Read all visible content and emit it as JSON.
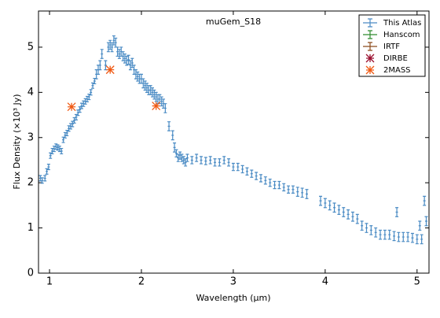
{
  "chart_data": {
    "type": "errorbar",
    "title": "muGem_S18",
    "xlabel": "Wavelength (μm)",
    "ylabel": "Flux Density (×10³ Jy)",
    "xlim": [
      0.88,
      5.13
    ],
    "ylim": [
      0,
      5.8
    ],
    "xticks": [
      1,
      2,
      3,
      4,
      5
    ],
    "yticks": [
      0,
      1,
      2,
      3,
      4,
      5
    ],
    "grid": false,
    "legend": "upper right",
    "series": [
      {
        "name": "This Atlas",
        "color": "#4a8bc4",
        "marker": "errorbar",
        "x": [
          0.9,
          0.92,
          0.95,
          0.97,
          0.99,
          1.01,
          1.03,
          1.05,
          1.07,
          1.09,
          1.11,
          1.13,
          1.15,
          1.17,
          1.19,
          1.21,
          1.23,
          1.25,
          1.27,
          1.29,
          1.31,
          1.33,
          1.35,
          1.37,
          1.39,
          1.41,
          1.43,
          1.45,
          1.47,
          1.49,
          1.51,
          1.53,
          1.55,
          1.57,
          1.61,
          1.64,
          1.66,
          1.68,
          1.7,
          1.72,
          1.74,
          1.76,
          1.78,
          1.8,
          1.82,
          1.84,
          1.86,
          1.88,
          1.9,
          1.92,
          1.94,
          1.96,
          1.98,
          2.0,
          2.02,
          2.04,
          2.06,
          2.08,
          2.1,
          2.12,
          2.14,
          2.16,
          2.18,
          2.2,
          2.22,
          2.24,
          2.26,
          2.3,
          2.34,
          2.36,
          2.38,
          2.4,
          2.42,
          2.44,
          2.46,
          2.48,
          2.5,
          2.55,
          2.6,
          2.65,
          2.7,
          2.75,
          2.8,
          2.85,
          2.9,
          2.95,
          3.0,
          3.05,
          3.1,
          3.15,
          3.2,
          3.25,
          3.3,
          3.35,
          3.4,
          3.45,
          3.5,
          3.55,
          3.6,
          3.65,
          3.7,
          3.75,
          3.8,
          3.95,
          4.0,
          4.05,
          4.1,
          4.15,
          4.2,
          4.25,
          4.3,
          4.35,
          4.4,
          4.45,
          4.5,
          4.55,
          4.6,
          4.65,
          4.7,
          4.75,
          4.78,
          4.8,
          4.85,
          4.9,
          4.95,
          5.0,
          5.03,
          5.05,
          5.08,
          5.1
        ],
        "values": [
          2.1,
          2.05,
          2.1,
          2.25,
          2.35,
          2.6,
          2.7,
          2.75,
          2.8,
          2.78,
          2.75,
          2.7,
          2.95,
          3.05,
          3.1,
          3.2,
          3.25,
          3.3,
          3.38,
          3.45,
          3.55,
          3.62,
          3.7,
          3.75,
          3.8,
          3.85,
          3.9,
          4.0,
          4.15,
          4.25,
          4.4,
          4.5,
          4.6,
          4.85,
          4.6,
          5.0,
          5.05,
          5.0,
          5.15,
          5.1,
          4.9,
          4.85,
          4.9,
          4.8,
          4.75,
          4.7,
          4.72,
          4.6,
          4.65,
          4.5,
          4.4,
          4.35,
          4.3,
          4.3,
          4.2,
          4.15,
          4.1,
          4.05,
          4.05,
          4.0,
          3.95,
          3.9,
          3.85,
          3.85,
          3.8,
          3.75,
          3.65,
          3.25,
          3.05,
          2.78,
          2.65,
          2.55,
          2.6,
          2.55,
          2.5,
          2.45,
          2.55,
          2.5,
          2.55,
          2.5,
          2.48,
          2.5,
          2.45,
          2.45,
          2.5,
          2.45,
          2.35,
          2.35,
          2.3,
          2.25,
          2.2,
          2.15,
          2.1,
          2.05,
          2.0,
          1.95,
          1.95,
          1.9,
          1.85,
          1.85,
          1.8,
          1.78,
          1.75,
          1.6,
          1.55,
          1.5,
          1.45,
          1.4,
          1.35,
          1.3,
          1.25,
          1.2,
          1.05,
          1.0,
          0.95,
          0.9,
          0.85,
          0.85,
          0.85,
          0.82,
          1.35,
          0.8,
          0.8,
          0.8,
          0.78,
          0.75,
          1.05,
          0.75,
          1.6,
          1.15
        ],
        "errors": [
          0.06,
          0.06,
          0.06,
          0.06,
          0.06,
          0.06,
          0.06,
          0.06,
          0.06,
          0.06,
          0.06,
          0.06,
          0.06,
          0.06,
          0.06,
          0.06,
          0.06,
          0.06,
          0.06,
          0.06,
          0.06,
          0.06,
          0.06,
          0.06,
          0.06,
          0.06,
          0.06,
          0.06,
          0.06,
          0.06,
          0.1,
          0.1,
          0.1,
          0.1,
          0.1,
          0.1,
          0.1,
          0.1,
          0.1,
          0.1,
          0.1,
          0.1,
          0.1,
          0.1,
          0.1,
          0.1,
          0.1,
          0.1,
          0.1,
          0.1,
          0.1,
          0.1,
          0.1,
          0.1,
          0.1,
          0.1,
          0.1,
          0.1,
          0.1,
          0.1,
          0.1,
          0.1,
          0.1,
          0.1,
          0.1,
          0.1,
          0.1,
          0.1,
          0.1,
          0.1,
          0.08,
          0.08,
          0.08,
          0.08,
          0.08,
          0.08,
          0.08,
          0.08,
          0.08,
          0.08,
          0.08,
          0.08,
          0.08,
          0.08,
          0.08,
          0.08,
          0.08,
          0.08,
          0.08,
          0.08,
          0.08,
          0.08,
          0.08,
          0.08,
          0.08,
          0.08,
          0.08,
          0.08,
          0.08,
          0.08,
          0.1,
          0.1,
          0.1,
          0.1,
          0.1,
          0.1,
          0.1,
          0.1,
          0.1,
          0.1,
          0.1,
          0.1,
          0.1,
          0.1,
          0.1,
          0.1,
          0.1,
          0.1,
          0.1,
          0.1,
          0.1,
          0.1,
          0.1,
          0.1,
          0.1,
          0.1,
          0.1,
          0.1,
          0.1,
          0.1
        ]
      },
      {
        "name": "Hanscom",
        "color": "#2e8b2e",
        "marker": "errorbar",
        "x": [],
        "values": []
      },
      {
        "name": "IRTF",
        "color": "#8b4a1a",
        "marker": "errorbar",
        "x": [],
        "values": []
      },
      {
        "name": "DIRBE",
        "color": "#9b1030",
        "marker": "x",
        "x": [],
        "values": []
      },
      {
        "name": "2MASS",
        "color": "#f05a14",
        "marker": "x",
        "x": [
          1.24,
          1.66,
          2.16
        ],
        "values": [
          3.68,
          4.5,
          3.7
        ]
      }
    ]
  }
}
